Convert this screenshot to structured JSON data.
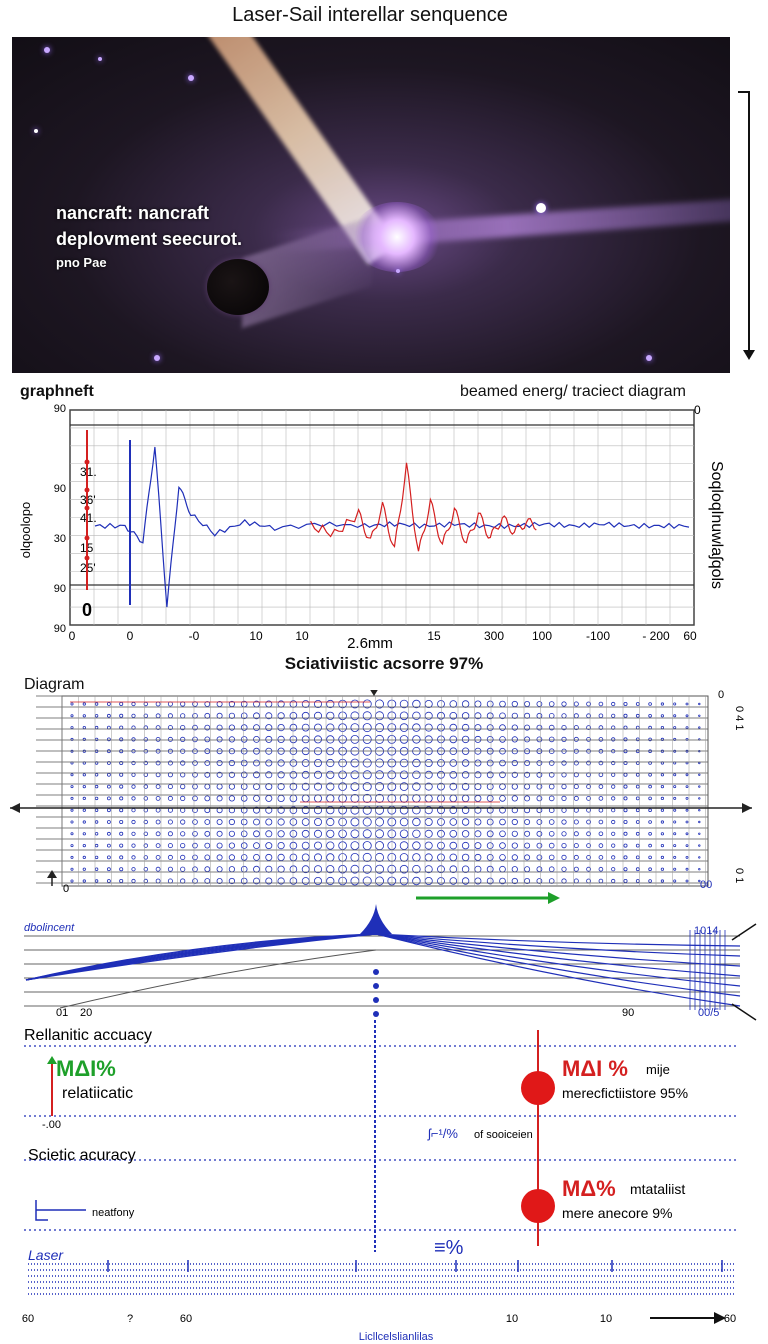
{
  "page": {
    "title": "Laser-Sail interellar senquence"
  },
  "photo": {
    "caption_line1": "nancraft:   nancraft",
    "caption_line2": "deplovment seecurot.",
    "caption_line3": "pno Pae"
  },
  "chart_data": [
    {
      "type": "line",
      "title": "beamed energ/ traciect diagram",
      "corner_label": "graphneft",
      "y_axis_label_left": "olqoolopo",
      "y_axis_label_right": "Soqloqlnuwlaʃqols",
      "ytick_labels": [
        "90",
        "90",
        "30",
        "90",
        "90"
      ],
      "right_top_label": "0",
      "side_values": [
        "31.",
        "36'",
        "41.",
        "15",
        "25'"
      ],
      "zero_marker": "0",
      "xtick_labels": [
        "0",
        "0",
        "-0",
        "10",
        "10",
        "15",
        "300",
        "100",
        "-100",
        "- 200",
        "60"
      ],
      "x_annotation": "2.6mm",
      "series": [
        {
          "color": "#1f2fb8",
          "x": [
            0,
            5,
            8,
            10,
            12,
            14,
            16,
            20,
            25,
            30,
            38,
            45,
            50,
            55,
            60,
            65,
            70,
            75,
            80,
            85,
            90,
            95,
            100
          ],
          "y": [
            0,
            0,
            -8,
            40,
            -40,
            20,
            6,
            -4,
            2,
            -1,
            1,
            0,
            1,
            0,
            1,
            0,
            0,
            1,
            0,
            1,
            0,
            0,
            0
          ]
        },
        {
          "color": "#d42020",
          "x": [
            36,
            40,
            44,
            46,
            48,
            50,
            52,
            54,
            56,
            58,
            60,
            62,
            64,
            66,
            68,
            70,
            72,
            74
          ],
          "y": [
            0,
            -4,
            6,
            -8,
            10,
            -12,
            30,
            -14,
            12,
            -10,
            8,
            -9,
            6,
            -6,
            4,
            -3,
            2,
            0
          ]
        }
      ]
    },
    {
      "type": "heatmap",
      "title": "Sciativiistic acsorre  97%",
      "corner_label": "Diagram",
      "left_bottom_label": "0",
      "right_top_labels": [
        "0",
        "0 4 1"
      ],
      "right_bottom_labels": [
        "00",
        "0 1"
      ]
    },
    {
      "type": "line",
      "title": "dbolincent",
      "x_labels": [
        "01",
        "20",
        "90"
      ],
      "right_labels": [
        "1014",
        "00/5"
      ]
    }
  ],
  "accuracy": {
    "section1_heading": "Rellanitic accuacy",
    "section1_badge": "MΔI%",
    "section1_sub": "relatiicatic",
    "section1_value": "-.00",
    "section1_right_badge": "MΔI %",
    "section1_right_small": "mije",
    "section1_right_line": "merecfictiistore 95%",
    "mid_label_badge": "ʃ⌐¹/%",
    "mid_label_text": "of sooiceien",
    "section2_heading": "Scietic acuracy",
    "section2_small": "neatfony",
    "section2_right_badge": "MΔ%",
    "section2_right_small": "mtataliist",
    "section2_right_line": "mere anecore 9%",
    "equals_label": "≡%"
  },
  "bottom_axis": {
    "title": "Laser",
    "tick_labels": [
      "60",
      "?",
      "60",
      "10",
      "10",
      "60"
    ],
    "caption": "Licllcelslianlilas"
  },
  "colors": {
    "blue": "#1f2fb8",
    "red": "#d42020",
    "green": "#1ea02a",
    "grid": "#b8b8b8"
  }
}
